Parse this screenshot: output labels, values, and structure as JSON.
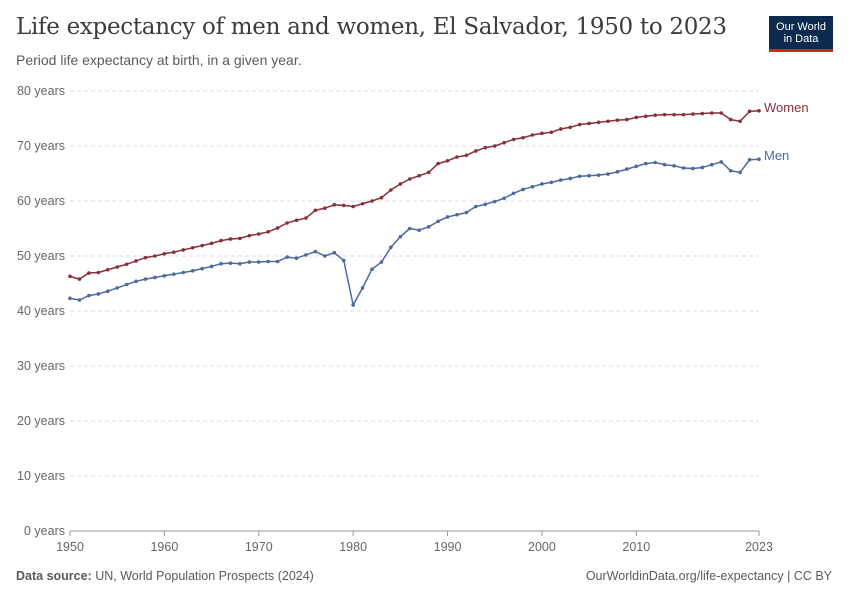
{
  "title": "Life expectancy of men and women, El Salvador, 1950 to 2023",
  "subtitle": "Period life expectancy at birth, in a given year.",
  "logo": {
    "line1": "Our World",
    "line2": "in Data"
  },
  "footer": {
    "source_label": "Data source:",
    "source_text": "UN, World Population Prospects (2024)",
    "url": "OurWorldinData.org/life-expectancy | CC BY"
  },
  "chart_data": {
    "type": "line",
    "title": "Life expectancy of men and women, El Salvador, 1950 to 2023",
    "xlabel": "",
    "ylabel": "",
    "xlim": [
      1950,
      2023
    ],
    "ylim": [
      0,
      80
    ],
    "x_ticks": [
      1950,
      1960,
      1970,
      1980,
      1990,
      2000,
      2010,
      2023
    ],
    "y_ticks": [
      0,
      10,
      20,
      30,
      40,
      50,
      60,
      70,
      80
    ],
    "y_tick_suffix": " years",
    "legend": "inline-right",
    "x": [
      1950,
      1951,
      1952,
      1953,
      1954,
      1955,
      1956,
      1957,
      1958,
      1959,
      1960,
      1961,
      1962,
      1963,
      1964,
      1965,
      1966,
      1967,
      1968,
      1969,
      1970,
      1971,
      1972,
      1973,
      1974,
      1975,
      1976,
      1977,
      1978,
      1979,
      1980,
      1981,
      1982,
      1983,
      1984,
      1985,
      1986,
      1987,
      1988,
      1989,
      1990,
      1991,
      1992,
      1993,
      1994,
      1995,
      1996,
      1997,
      1998,
      1999,
      2000,
      2001,
      2002,
      2003,
      2004,
      2005,
      2006,
      2007,
      2008,
      2009,
      2010,
      2011,
      2012,
      2013,
      2014,
      2015,
      2016,
      2017,
      2018,
      2019,
      2020,
      2021,
      2022,
      2023
    ],
    "series": [
      {
        "name": "Women",
        "color": "#883039",
        "values": [
          46.3,
          45.8,
          46.9,
          47.0,
          47.5,
          48.0,
          48.5,
          49.1,
          49.7,
          50.0,
          50.4,
          50.7,
          51.1,
          51.5,
          51.9,
          52.3,
          52.8,
          53.1,
          53.2,
          53.7,
          54.0,
          54.4,
          55.1,
          56.0,
          56.5,
          56.9,
          58.3,
          58.7,
          59.3,
          59.2,
          59.0,
          59.5,
          60.0,
          60.6,
          62.0,
          63.1,
          64.0,
          64.6,
          65.2,
          66.8,
          67.3,
          68.0,
          68.3,
          69.1,
          69.7,
          70.0,
          70.6,
          71.2,
          71.5,
          72.0,
          72.3,
          72.5,
          73.1,
          73.4,
          73.9,
          74.1,
          74.3,
          74.5,
          74.7,
          74.8,
          75.2,
          75.4,
          75.6,
          75.7,
          75.7,
          75.7,
          75.8,
          75.9,
          76.0,
          76.0,
          74.8,
          74.5,
          76.3,
          76.4
        ]
      },
      {
        "name": "Men",
        "color": "#4c6a9c",
        "values": [
          42.3,
          42.0,
          42.8,
          43.1,
          43.6,
          44.2,
          44.8,
          45.4,
          45.8,
          46.1,
          46.4,
          46.7,
          47.0,
          47.3,
          47.7,
          48.1,
          48.6,
          48.7,
          48.6,
          48.9,
          48.9,
          49.0,
          49.0,
          49.8,
          49.6,
          50.2,
          50.8,
          50.0,
          50.6,
          49.2,
          41.1,
          44.2,
          47.6,
          48.9,
          51.6,
          53.5,
          55.0,
          54.7,
          55.3,
          56.3,
          57.1,
          57.5,
          57.9,
          59.0,
          59.4,
          59.9,
          60.5,
          61.4,
          62.1,
          62.6,
          63.1,
          63.4,
          63.8,
          64.1,
          64.5,
          64.6,
          64.7,
          64.9,
          65.3,
          65.8,
          66.3,
          66.8,
          67.0,
          66.6,
          66.4,
          66.0,
          65.9,
          66.1,
          66.6,
          67.1,
          65.5,
          65.2,
          67.5,
          67.6
        ]
      }
    ]
  }
}
